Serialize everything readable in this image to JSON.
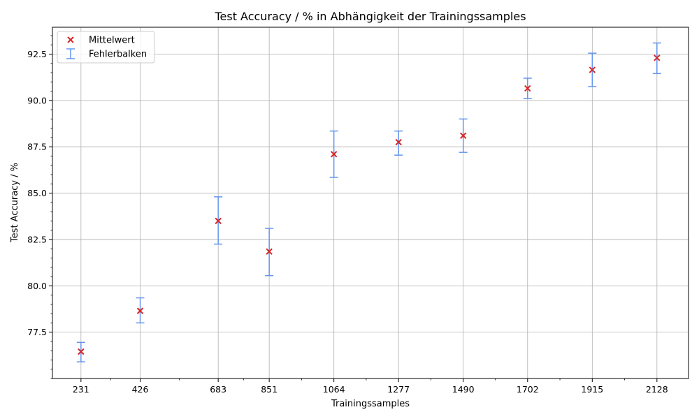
{
  "chart_data": {
    "type": "scatter",
    "title": "Test Accuracy / % in Abhängigkeit der Trainingssamples",
    "xlabel": "Trainingssamples",
    "ylabel": "Test Accuracy / %",
    "x": [
      231,
      426,
      683,
      851,
      1064,
      1277,
      1490,
      1702,
      1915,
      2128
    ],
    "x_tick_labels": [
      "231",
      "426",
      "683",
      "851",
      "1064",
      "1277",
      "1490",
      "1702",
      "1915",
      "2128"
    ],
    "y_ticks": [
      77.5,
      80.0,
      82.5,
      85.0,
      87.5,
      90.0,
      92.5
    ],
    "y_tick_labels": [
      "77.5",
      "80.0",
      "82.5",
      "85.0",
      "87.5",
      "90.0",
      "92.5"
    ],
    "xlim": [
      137,
      2232
    ],
    "ylim": [
      75.0,
      93.95
    ],
    "grid": true,
    "legend_position": "top-left",
    "series": [
      {
        "name": "Mittelwert",
        "marker": "x",
        "color": "#d62728",
        "values": [
          76.45,
          78.65,
          83.5,
          81.85,
          87.1,
          87.75,
          88.1,
          90.65,
          91.65,
          92.3
        ]
      },
      {
        "name": "Fehlerbalken",
        "marker": "errorbar",
        "color": "#6495ed",
        "lower": [
          75.9,
          78.0,
          82.25,
          80.55,
          85.85,
          87.05,
          87.2,
          90.1,
          90.75,
          91.45
        ],
        "upper": [
          76.95,
          79.35,
          84.8,
          83.1,
          88.35,
          88.35,
          89.0,
          91.2,
          92.55,
          93.1
        ]
      }
    ]
  }
}
